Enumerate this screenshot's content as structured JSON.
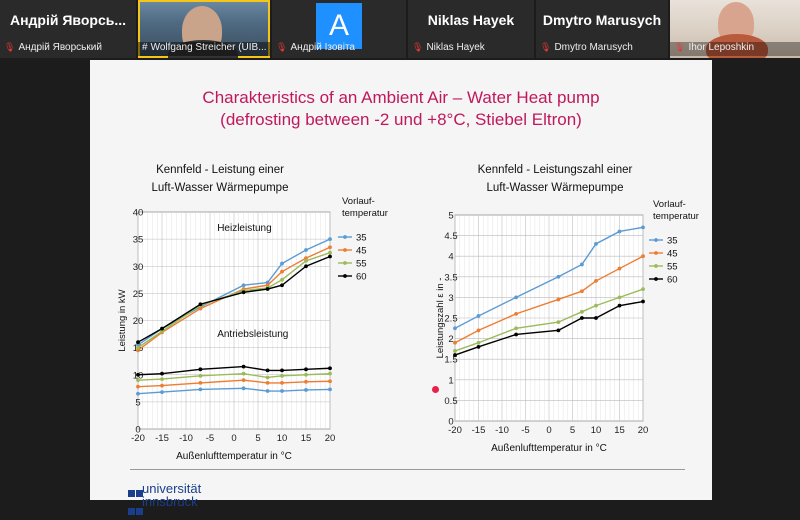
{
  "participants": [
    {
      "display": "Андрій Яворсь...",
      "name": "Андрій Яворський",
      "muted": true,
      "type": "name"
    },
    {
      "display": "",
      "name": "Wolfgang Streicher (UIB...",
      "muted": false,
      "type": "video",
      "active": true
    },
    {
      "display": "A",
      "name": "Андрій Ізовіта",
      "muted": true,
      "type": "letter"
    },
    {
      "display": "Niklas Hayek",
      "name": "Niklas Hayek",
      "muted": true,
      "type": "name"
    },
    {
      "display": "Dmytro Marusych",
      "name": "Dmytro Marusych",
      "muted": true,
      "type": "name"
    },
    {
      "display": "",
      "name": "Ihor Leposhkin",
      "muted": true,
      "type": "video2"
    }
  ],
  "mic_icon": "muted-mic-icon",
  "slide": {
    "title_line1": "Charakteristics of an Ambient Air – Water Heat pump",
    "title_line2": "(defrosting between -2 und +8°C, Stiebel Eltron)",
    "logo_text_line1": "universität",
    "logo_text_line2": "innsbruck",
    "title_color": "#c0185c"
  },
  "chart_data": [
    {
      "type": "line",
      "title": "Kennfeld - Leistung einer Luft-Wasser Wärmepumpe",
      "title_line1": "Kennfeld - Leistung einer",
      "title_line2": "Luft-Wasser Wärmepumpe",
      "xlabel": "Außenlufttemperatur in °C",
      "ylabel": "Leistung in kW",
      "xlim": [
        -20,
        20
      ],
      "ylim": [
        0,
        40
      ],
      "xticks": [
        -20,
        -15,
        -10,
        -5,
        0,
        5,
        10,
        15,
        20
      ],
      "yticks": [
        0,
        5,
        10,
        15,
        20,
        25,
        30,
        35,
        40
      ],
      "grid": true,
      "legend_title_line1": "Vorlauf-",
      "legend_title_line2": "temperatur",
      "legend_position": "right",
      "annotations": [
        {
          "text": "Heizleistung",
          "x": -3.5,
          "y": 36.5
        },
        {
          "text": "Antriebsleistung",
          "x": -3.5,
          "y": 17
        }
      ],
      "series": [
        {
          "name": "35",
          "color": "#5b9bd5",
          "group": "heating",
          "x": [
            -20,
            -15,
            -7,
            2,
            7,
            10,
            15,
            20
          ],
          "y": [
            15.5,
            18.5,
            22.5,
            26.5,
            27,
            30.5,
            33,
            35
          ]
        },
        {
          "name": "45",
          "color": "#ed7d31",
          "group": "heating",
          "x": [
            -20,
            -15,
            -7,
            2,
            7,
            10,
            15,
            20
          ],
          "y": [
            14.5,
            17.8,
            22.2,
            25.8,
            26.5,
            29,
            31.5,
            33.5
          ]
        },
        {
          "name": "55",
          "color": "#9bbb59",
          "group": "heating",
          "x": [
            -20,
            -15,
            -7,
            2,
            7,
            10,
            15,
            20
          ],
          "y": [
            15,
            18,
            22.8,
            25.5,
            26,
            27.5,
            31,
            32.5
          ]
        },
        {
          "name": "60",
          "color": "#000000",
          "group": "heating",
          "x": [
            -20,
            -15,
            -7,
            2,
            7,
            10,
            15,
            20
          ],
          "y": [
            16,
            18.5,
            23,
            25.2,
            25.8,
            26.5,
            30,
            31.8
          ]
        },
        {
          "name": "35",
          "color": "#5b9bd5",
          "group": "drive",
          "x": [
            -20,
            -15,
            -7,
            2,
            7,
            10,
            15,
            20
          ],
          "y": [
            6.5,
            6.8,
            7.3,
            7.5,
            7,
            7,
            7.2,
            7.3
          ]
        },
        {
          "name": "45",
          "color": "#ed7d31",
          "group": "drive",
          "x": [
            -20,
            -15,
            -7,
            2,
            7,
            10,
            15,
            20
          ],
          "y": [
            7.8,
            8,
            8.5,
            9,
            8.5,
            8.5,
            8.7,
            8.8
          ]
        },
        {
          "name": "55",
          "color": "#9bbb59",
          "group": "drive",
          "x": [
            -20,
            -15,
            -7,
            2,
            7,
            10,
            15,
            20
          ],
          "y": [
            9,
            9.2,
            9.8,
            10.2,
            9.5,
            9.8,
            10,
            10.2
          ]
        },
        {
          "name": "60",
          "color": "#000000",
          "group": "drive",
          "x": [
            -20,
            -15,
            -7,
            2,
            7,
            10,
            15,
            20
          ],
          "y": [
            10,
            10.2,
            11,
            11.5,
            10.8,
            10.8,
            11,
            11.2
          ]
        }
      ]
    },
    {
      "type": "line",
      "title": "Kennfeld - Leistungszahl einer Luft-Wasser Wärmepumpe",
      "title_line1": "Kennfeld - Leistungszahl einer",
      "title_line2": "Luft-Wasser Wärmepumpe",
      "xlabel": "Außenlufttemperatur in °C",
      "ylabel": "Leistungszahl ε in -",
      "xlim": [
        -20,
        20
      ],
      "ylim": [
        0,
        5
      ],
      "xticks": [
        -20,
        -15,
        -10,
        -5,
        0,
        5,
        10,
        15,
        20
      ],
      "yticks": [
        0,
        0.5,
        1,
        1.5,
        2,
        2.5,
        3,
        3.5,
        4,
        4.5,
        5
      ],
      "grid": true,
      "legend_title_line1": "Vorlauf-",
      "legend_title_line2": "temperatur",
      "legend_position": "right",
      "series": [
        {
          "name": "35",
          "color": "#5b9bd5",
          "x": [
            -20,
            -15,
            -7,
            2,
            7,
            10,
            15,
            20
          ],
          "y": [
            2.25,
            2.55,
            3,
            3.5,
            3.8,
            4.3,
            4.6,
            4.7
          ]
        },
        {
          "name": "45",
          "color": "#ed7d31",
          "x": [
            -20,
            -15,
            -7,
            2,
            7,
            10,
            15,
            20
          ],
          "y": [
            1.9,
            2.2,
            2.6,
            2.95,
            3.15,
            3.4,
            3.7,
            4
          ]
        },
        {
          "name": "55",
          "color": "#9bbb59",
          "x": [
            -20,
            -15,
            -7,
            2,
            7,
            10,
            15,
            20
          ],
          "y": [
            1.7,
            1.9,
            2.25,
            2.4,
            2.65,
            2.8,
            3,
            3.2
          ]
        },
        {
          "name": "60",
          "color": "#000000",
          "x": [
            -20,
            -15,
            -7,
            2,
            7,
            10,
            15,
            20
          ],
          "y": [
            1.6,
            1.8,
            2.1,
            2.2,
            2.5,
            2.5,
            2.8,
            2.9
          ]
        }
      ]
    }
  ]
}
